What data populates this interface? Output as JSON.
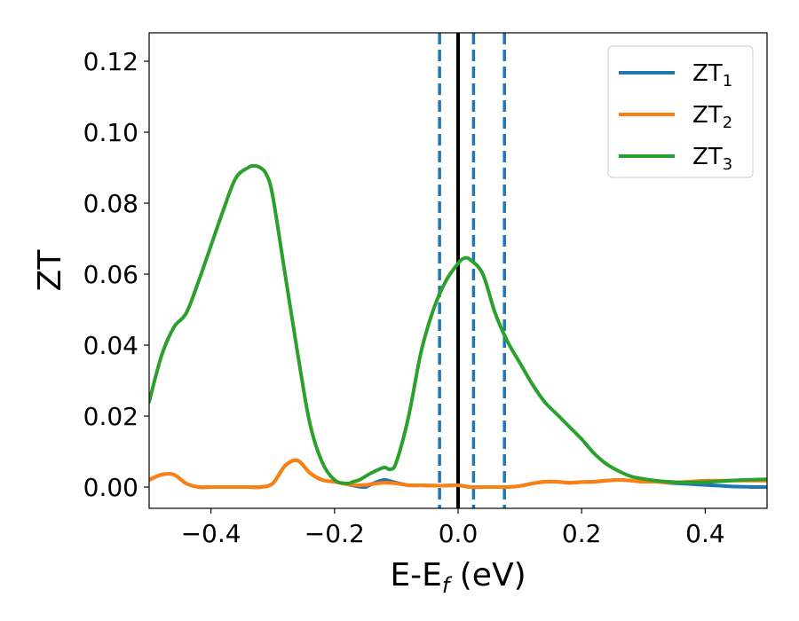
{
  "chart_data": {
    "type": "line",
    "xlabel": "E-E",
    "xlabel_sub": "f",
    "xlabel_unit": " (eV)",
    "ylabel": "ZT",
    "xlim": [
      -0.5,
      0.5
    ],
    "ylim": [
      -0.006,
      0.128
    ],
    "x_ticks": [
      -0.4,
      -0.2,
      0.0,
      0.2,
      0.4
    ],
    "x_tick_labels": [
      "−0.4",
      "−0.2",
      "0.0",
      "0.2",
      "0.4"
    ],
    "y_ticks": [
      0.0,
      0.02,
      0.04,
      0.06,
      0.08,
      0.1,
      0.12
    ],
    "y_tick_labels": [
      "0.00",
      "0.02",
      "0.04",
      "0.06",
      "0.08",
      "0.10",
      "0.12"
    ],
    "grid": false,
    "legend_position": "top-right",
    "vertical_lines": [
      {
        "x": 0.0,
        "style": "solid",
        "color": "#000000"
      },
      {
        "x": -0.03,
        "style": "dashed",
        "color": "#1f77b4"
      },
      {
        "x": 0.025,
        "style": "dashed",
        "color": "#1f77b4"
      },
      {
        "x": 0.075,
        "style": "dashed",
        "color": "#1f77b4"
      }
    ],
    "series": [
      {
        "name": "ZT",
        "sub": "1",
        "color": "#1f77b4",
        "x": [
          -0.5,
          -0.48,
          -0.46,
          -0.44,
          -0.42,
          -0.4,
          -0.38,
          -0.36,
          -0.34,
          -0.32,
          -0.3,
          -0.28,
          -0.26,
          -0.24,
          -0.22,
          -0.2,
          -0.18,
          -0.16,
          -0.15,
          -0.14,
          -0.12,
          -0.1,
          -0.08,
          -0.06,
          -0.04,
          -0.02,
          0.0,
          0.02,
          0.04,
          0.06,
          0.08,
          0.1,
          0.12,
          0.14,
          0.16,
          0.18,
          0.2,
          0.22,
          0.24,
          0.26,
          0.28,
          0.3,
          0.32,
          0.34,
          0.36,
          0.38,
          0.4,
          0.42,
          0.44,
          0.46,
          0.48,
          0.5
        ],
        "y": [
          0.002,
          0.0035,
          0.0035,
          0.001,
          0.0,
          0.0,
          0.0,
          0.0,
          0.0,
          0.0,
          0.001,
          0.006,
          0.0075,
          0.004,
          0.002,
          0.0015,
          0.0008,
          0.0001,
          0.0,
          0.0008,
          0.002,
          0.0012,
          0.0005,
          0.0005,
          0.0004,
          0.0004,
          0.0005,
          0.0,
          0.0,
          0.0,
          0.0,
          0.0003,
          0.001,
          0.0015,
          0.0015,
          0.0012,
          0.0014,
          0.0015,
          0.0018,
          0.002,
          0.0018,
          0.0015,
          0.0015,
          0.0012,
          0.001,
          0.0008,
          0.0006,
          0.0004,
          0.0002,
          0.0001,
          0.0,
          0.0
        ]
      },
      {
        "name": "ZT",
        "sub": "2",
        "color": "#ff7f0e",
        "x": [
          -0.5,
          -0.48,
          -0.46,
          -0.44,
          -0.42,
          -0.4,
          -0.38,
          -0.36,
          -0.34,
          -0.32,
          -0.3,
          -0.28,
          -0.26,
          -0.24,
          -0.22,
          -0.2,
          -0.18,
          -0.16,
          -0.14,
          -0.12,
          -0.1,
          -0.08,
          -0.06,
          -0.04,
          -0.02,
          0.0,
          0.02,
          0.04,
          0.06,
          0.08,
          0.1,
          0.12,
          0.14,
          0.16,
          0.18,
          0.2,
          0.22,
          0.24,
          0.26,
          0.28,
          0.3,
          0.32,
          0.34,
          0.36,
          0.38,
          0.4,
          0.42,
          0.44,
          0.46,
          0.48,
          0.5
        ],
        "y": [
          0.002,
          0.0035,
          0.0035,
          0.001,
          0.0,
          0.0,
          0.0,
          0.0,
          0.0,
          0.0,
          0.001,
          0.006,
          0.0075,
          0.004,
          0.002,
          0.0015,
          0.0008,
          0.0005,
          0.0008,
          0.0012,
          0.001,
          0.0005,
          0.0005,
          0.0004,
          0.0004,
          0.0005,
          0.0,
          0.0,
          0.0,
          0.0,
          0.0003,
          0.001,
          0.0015,
          0.0015,
          0.0012,
          0.0014,
          0.0015,
          0.0018,
          0.002,
          0.0018,
          0.0015,
          0.0015,
          0.0013,
          0.0014,
          0.0016,
          0.0018,
          0.0018,
          0.0018,
          0.0018,
          0.0018,
          0.0018
        ]
      },
      {
        "name": "ZT",
        "sub": "3",
        "color": "#2ca02c",
        "x": [
          -0.5,
          -0.48,
          -0.46,
          -0.44,
          -0.42,
          -0.4,
          -0.38,
          -0.36,
          -0.34,
          -0.33,
          -0.32,
          -0.31,
          -0.3,
          -0.28,
          -0.26,
          -0.24,
          -0.22,
          -0.2,
          -0.18,
          -0.17,
          -0.16,
          -0.15,
          -0.14,
          -0.12,
          -0.11,
          -0.1,
          -0.08,
          -0.06,
          -0.04,
          -0.02,
          0.0,
          0.01,
          0.02,
          0.04,
          0.06,
          0.08,
          0.1,
          0.12,
          0.14,
          0.16,
          0.18,
          0.2,
          0.22,
          0.24,
          0.26,
          0.28,
          0.3,
          0.32,
          0.34,
          0.36,
          0.38,
          0.4,
          0.42,
          0.44,
          0.46,
          0.48,
          0.5
        ],
        "y": [
          0.024,
          0.037,
          0.045,
          0.049,
          0.058,
          0.068,
          0.078,
          0.087,
          0.09,
          0.0905,
          0.09,
          0.088,
          0.082,
          0.06,
          0.038,
          0.018,
          0.007,
          0.002,
          0.001,
          0.0015,
          0.002,
          0.003,
          0.004,
          0.0055,
          0.005,
          0.007,
          0.02,
          0.038,
          0.05,
          0.058,
          0.063,
          0.0645,
          0.064,
          0.06,
          0.049,
          0.041,
          0.035,
          0.029,
          0.024,
          0.0205,
          0.017,
          0.0135,
          0.0095,
          0.0065,
          0.0045,
          0.003,
          0.0023,
          0.0018,
          0.0015,
          0.0013,
          0.0013,
          0.0014,
          0.0016,
          0.0018,
          0.002,
          0.0021,
          0.0022
        ]
      }
    ]
  }
}
